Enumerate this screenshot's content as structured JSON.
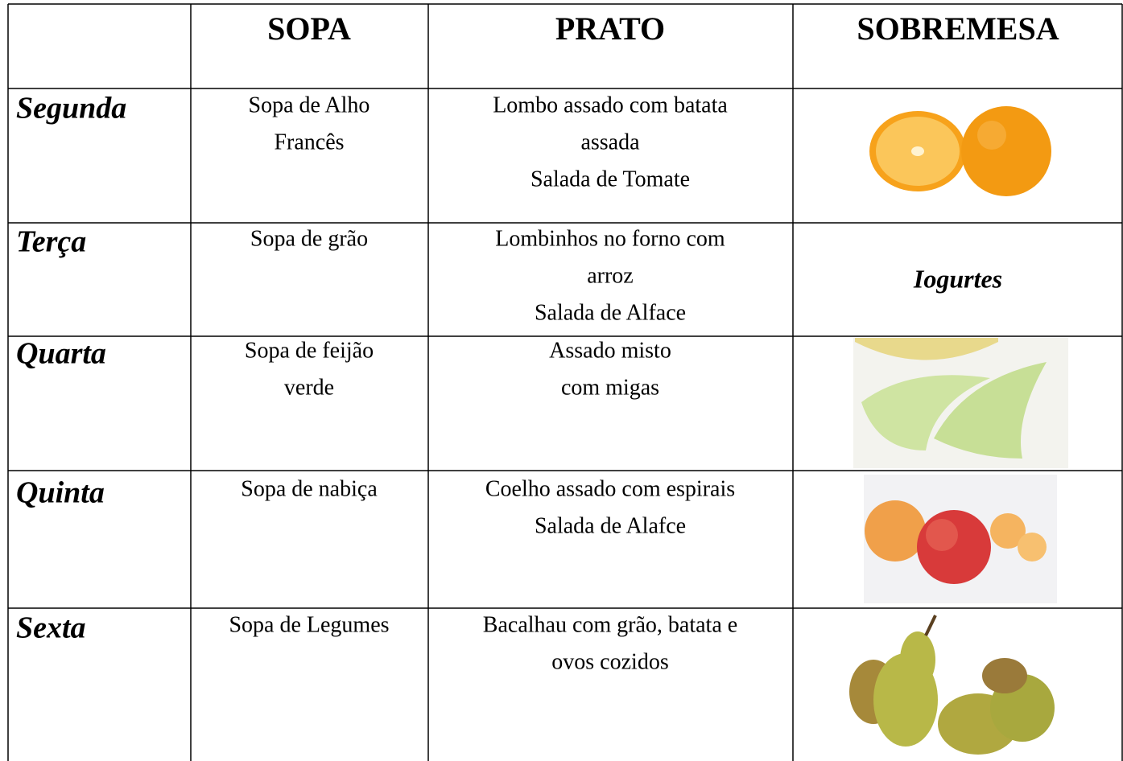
{
  "table": {
    "header": [
      "SOPA",
      "PRATO",
      "SOBREMESA"
    ],
    "rows": [
      {
        "day": "Segunda",
        "soup": [
          "Sopa de Alho",
          "Francês"
        ],
        "dish": [
          "Lombo assado com batata",
          "assada",
          "Salada de Tomate"
        ]
      },
      {
        "day": "Terça",
        "soup": [
          "Sopa de grão"
        ],
        "dish": [
          "Lombinhos no forno com",
          "arroz",
          "Salada de Alface"
        ],
        "dessert": "Iogurtes"
      },
      {
        "day": "Quarta",
        "soup": [
          "Sopa de feijão",
          "verde"
        ],
        "dish": [
          "Assado misto",
          "com migas"
        ]
      },
      {
        "day": "Quinta",
        "soup": [
          "Sopa de nabiça"
        ],
        "dish": [
          "Coelho assado com espirais",
          "Salada de Alafce"
        ]
      },
      {
        "day": "Sexta",
        "soup": [
          "Sopa de Legumes"
        ],
        "dish": [
          "Bacalhau com grão, batata e",
          "ovos cozidos"
        ]
      }
    ]
  }
}
